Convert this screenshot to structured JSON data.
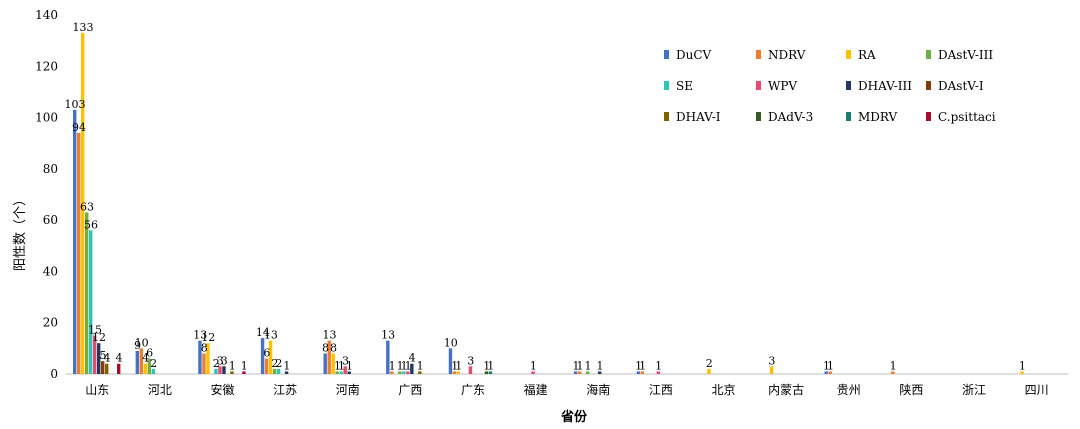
{
  "chart_data": {
    "type": "bar",
    "title": "",
    "xlabel": "省份",
    "ylabel": "阳性数（个）",
    "ylim": [
      0,
      140
    ],
    "yticks": [
      0,
      20,
      40,
      60,
      80,
      100,
      120,
      140
    ],
    "grid": false,
    "legend_position": "top-right",
    "categories": [
      "山东",
      "河北",
      "安徽",
      "江苏",
      "河南",
      "广西",
      "广东",
      "福建",
      "海南",
      "江西",
      "北京",
      "内蒙古",
      "贵州",
      "陕西",
      "浙江",
      "四川"
    ],
    "series": [
      {
        "name": "DuCV",
        "color": "#4472C4",
        "values": [
          103,
          9,
          13,
          14,
          8,
          13,
          10,
          0,
          1,
          1,
          0,
          0,
          1,
          0,
          0,
          0
        ]
      },
      {
        "name": "NDRV",
        "color": "#ED7D31",
        "values": [
          94,
          10,
          8,
          6,
          13,
          1,
          1,
          0,
          1,
          1,
          0,
          0,
          1,
          1,
          0,
          0
        ]
      },
      {
        "name": "RA",
        "color": "#FFC000",
        "values": [
          133,
          4,
          12,
          13,
          8,
          0,
          1,
          0,
          0,
          0,
          2,
          3,
          0,
          0,
          0,
          1
        ]
      },
      {
        "name": "DAstV-III",
        "color": "#70AD47",
        "values": [
          63,
          6,
          0,
          2,
          1,
          1,
          0,
          0,
          1,
          0,
          0,
          0,
          0,
          0,
          0,
          0
        ]
      },
      {
        "name": "SE",
        "color": "#2EC4B6",
        "values": [
          56,
          2,
          2,
          2,
          1,
          1,
          0,
          0,
          0,
          0,
          0,
          0,
          0,
          0,
          0,
          0
        ]
      },
      {
        "name": "WPV",
        "color": "#E84A6E",
        "values": [
          15,
          0,
          3,
          0,
          3,
          1,
          3,
          1,
          0,
          1,
          0,
          0,
          0,
          0,
          0,
          0
        ]
      },
      {
        "name": "DHAV-III",
        "color": "#1F3864",
        "values": [
          12,
          0,
          3,
          1,
          1,
          4,
          0,
          0,
          1,
          0,
          0,
          0,
          0,
          0,
          0,
          0
        ]
      },
      {
        "name": "DAstV-I",
        "color": "#843C0C",
        "values": [
          5,
          0,
          0,
          0,
          0,
          0,
          0,
          0,
          0,
          0,
          0,
          0,
          0,
          0,
          0,
          0
        ]
      },
      {
        "name": "DHAV-I",
        "color": "#7F6000",
        "values": [
          4,
          0,
          1,
          0,
          0,
          1,
          0,
          0,
          0,
          0,
          0,
          0,
          0,
          0,
          0,
          0
        ]
      },
      {
        "name": "DAdV-3",
        "color": "#385723",
        "values": [
          0,
          0,
          0,
          0,
          0,
          0,
          1,
          0,
          0,
          0,
          0,
          0,
          0,
          0,
          0,
          0
        ]
      },
      {
        "name": "MDRV",
        "color": "#1A7F6E",
        "values": [
          0,
          0,
          0,
          0,
          0,
          0,
          1,
          0,
          0,
          0,
          0,
          0,
          0,
          0,
          0,
          0
        ]
      },
      {
        "name": "C.psittaci",
        "color": "#A50F2D",
        "values": [
          4,
          0,
          1,
          0,
          0,
          0,
          0,
          0,
          0,
          0,
          0,
          0,
          0,
          0,
          0,
          0
        ]
      }
    ]
  }
}
